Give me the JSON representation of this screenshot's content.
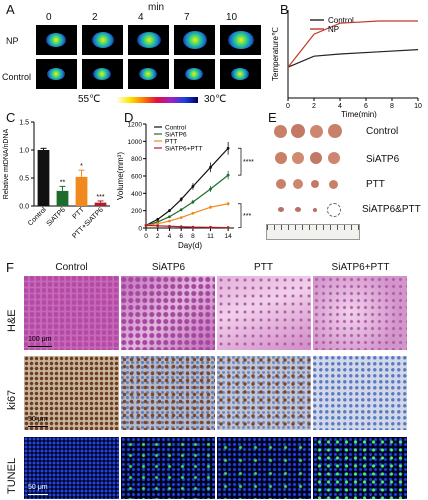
{
  "panel_labels": {
    "A": "A",
    "B": "B",
    "C": "C",
    "D": "D",
    "E": "E",
    "F": "F"
  },
  "panelA": {
    "unit": "min",
    "times": [
      "0",
      "2",
      "4",
      "7",
      "10"
    ],
    "rows": [
      "NP",
      "Control"
    ],
    "scale_high": "55℃",
    "scale_low": "30℃"
  },
  "chart_data": [
    {
      "type": "line",
      "panel": "B",
      "xlabel": "Time(min)",
      "ylabel": "Temperature℃",
      "xlim": [
        0,
        10
      ],
      "xticks": [
        "0",
        "2",
        "4",
        "6",
        "8",
        "10"
      ],
      "series": [
        {
          "name": "Control",
          "color": "#222222",
          "x": [
            0,
            2,
            4,
            7,
            10
          ],
          "values": [
            37,
            39.5,
            40,
            40.5,
            41
          ]
        },
        {
          "name": "NP",
          "color": "#c0392b",
          "x": [
            0,
            2,
            4,
            7,
            10
          ],
          "values": [
            37,
            44.5,
            47,
            47.5,
            47.5
          ]
        }
      ]
    },
    {
      "type": "bar",
      "panel": "C",
      "ylabel": "Relative mtDNA/nDNA",
      "ylim": [
        0,
        1.5
      ],
      "yticks": [
        "0.0",
        "0.5",
        "1.0",
        "1.5"
      ],
      "categories": [
        "Control",
        "SiATP6",
        "PTT",
        "PTT+SiATP6"
      ],
      "values": [
        1.0,
        0.27,
        0.52,
        0.06
      ],
      "errors": [
        0.03,
        0.08,
        0.12,
        0.03
      ],
      "colors": [
        "#111111",
        "#1e6b2e",
        "#f0891e",
        "#b01e2a"
      ],
      "sig": [
        "",
        "**",
        "*",
        "***"
      ]
    },
    {
      "type": "line",
      "panel": "D",
      "xlabel": "Day(d)",
      "ylabel": "Volume(mm³)",
      "ylim": [
        0,
        1200
      ],
      "yticks": [
        "0",
        "200",
        "400",
        "600",
        "800",
        "1000",
        "1200"
      ],
      "x": [
        0,
        2,
        4,
        6,
        8,
        11,
        14
      ],
      "series": [
        {
          "name": "Control",
          "color": "#111111",
          "values": [
            30,
            100,
            200,
            330,
            480,
            700,
            920
          ]
        },
        {
          "name": "SiATP6",
          "color": "#1e6b2e",
          "values": [
            30,
            70,
            130,
            210,
            300,
            450,
            610
          ]
        },
        {
          "name": "PTT",
          "color": "#f0891e",
          "values": [
            30,
            50,
            80,
            120,
            170,
            240,
            280
          ]
        },
        {
          "name": "SiATP6+PTT",
          "color": "#b01e2a",
          "values": [
            30,
            25,
            20,
            15,
            10,
            8,
            5
          ]
        }
      ],
      "sig": [
        "****",
        "***"
      ]
    }
  ],
  "panelE": {
    "rows": [
      "Control",
      "SiATP6",
      "PTT",
      "SiATP6&PTT"
    ]
  },
  "panelF": {
    "columns": [
      "Control",
      "SiATP6",
      "PTT",
      "SiATP6+PTT"
    ],
    "rows": [
      "H&E",
      "ki67",
      "TUNEL"
    ],
    "scalebars": [
      "100 μm",
      "50 μm",
      "50 μm"
    ]
  }
}
